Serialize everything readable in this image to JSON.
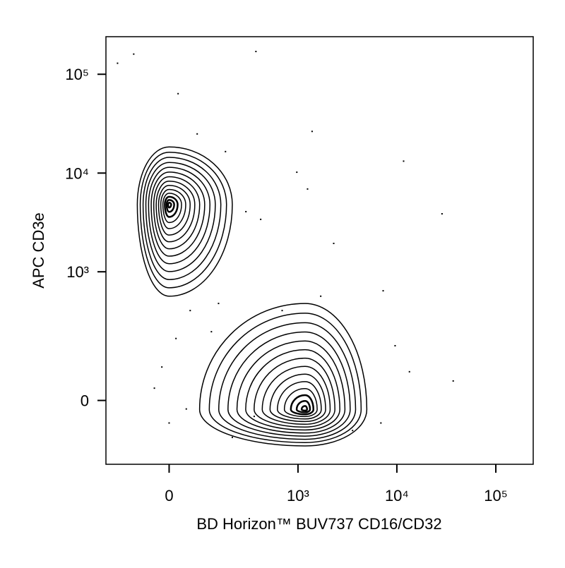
{
  "chart_data": {
    "type": "contour",
    "xlabel": "BD Horizon™ BUV737 CD16/CD32",
    "ylabel": "APC CD3e",
    "xscale": "biexponential",
    "yscale": "biexponential",
    "xlim": [
      -206,
      238700
    ],
    "ylim": [
      -210,
      240000
    ],
    "xticks": [
      0,
      {
        "value": 1000,
        "label": "10³"
      },
      {
        "value": 10000,
        "label": "10⁴"
      },
      {
        "value": 100000,
        "label": "10⁵"
      }
    ],
    "yticks": [
      0,
      {
        "value": 1000,
        "label": "10³"
      },
      {
        "value": 10000,
        "label": "10⁴"
      },
      {
        "value": 100000,
        "label": "10⁵"
      }
    ],
    "color": "#000000",
    "contour_levels": 14,
    "populations": [
      {
        "x": 0,
        "y": 4800,
        "x_range": [
          -81,
          206
        ],
        "y_range": [
          563,
          18400
        ]
      },
      {
        "x": 1180,
        "y": -21,
        "x_range": [
          77,
          4970
        ],
        "y_range": [
          -127,
          474
        ]
      }
    ],
    "events": {
      "x": [
        -151,
        -92,
        370,
        21,
        1390,
        11700,
        28600,
        973,
        1250,
        37100,
        13400,
        7270,
        2300,
        115,
        51,
        -17,
        0,
        -35,
        206,
        355,
        6900,
        9600,
        690,
        290,
        415,
        142,
        1700,
        70,
        172,
        16,
        3570,
        41
      ],
      "y": [
        129300,
        160000,
        170000,
        63600,
        26400,
        13200,
        3870,
        10200,
        6900,
        47,
        72,
        640,
        1940,
        238,
        400,
        86,
        -55,
        29,
        -97,
        -38,
        -55,
        165,
        400,
        4070,
        3400,
        474,
        563,
        24900,
        16500,
        200,
        -76,
        -20
      ]
    }
  }
}
